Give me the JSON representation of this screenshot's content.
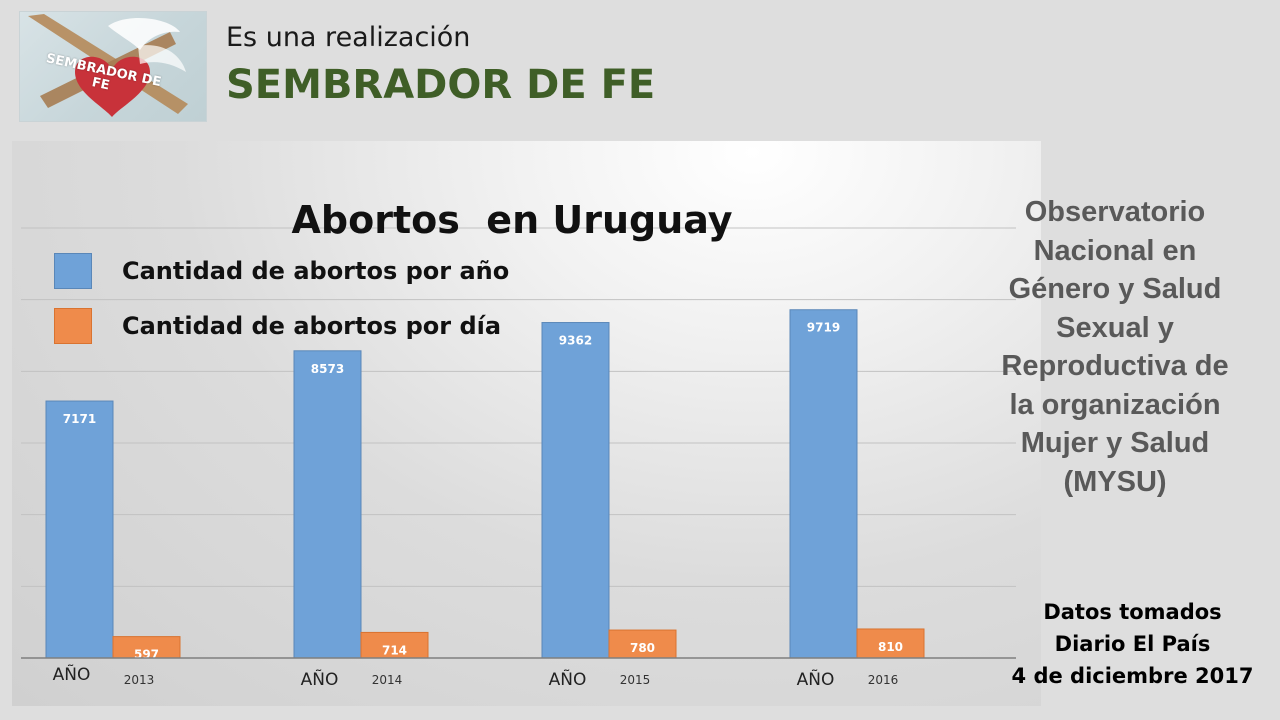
{
  "header": {
    "subtitle": "Es una realización",
    "title": "SEMBRADOR DE FE",
    "logo_text": "SEMBRADOR DE FE"
  },
  "side_text": "Observatorio Nacional en Género y Salud Sexual y Reproductiva de la organización Mujer y Salud (MYSU)",
  "source": {
    "line1": "Datos tomados",
    "line2": "Diario El País",
    "line3": "4 de diciembre 2017"
  },
  "colors": {
    "annual": "#6fa2d8",
    "daily": "#ef8b4b",
    "title_green": "#3f5e27"
  },
  "chart_data": {
    "type": "bar",
    "title": "Abortos  en Uruguay",
    "category_prefix": "AÑO",
    "categories": [
      "2013",
      "2014",
      "2015",
      "2016"
    ],
    "series": [
      {
        "name": "Cantidad de abortos por año",
        "values": [
          7171,
          8573,
          9362,
          9719
        ]
      },
      {
        "name": "Cantidad de abortos por día",
        "values": [
          597,
          714,
          780,
          810
        ]
      }
    ],
    "ylim": [
      0,
      12000
    ],
    "grid": true,
    "legend_position": "top-left"
  }
}
